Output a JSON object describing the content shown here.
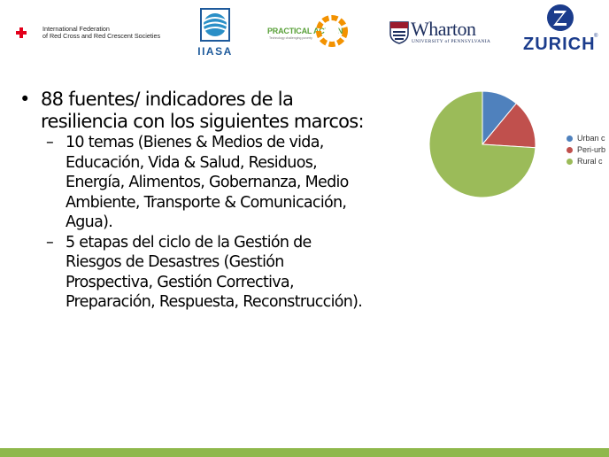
{
  "logos": {
    "ifrc": {
      "line1": "International Federation",
      "line2": "of Red Cross and Red Crescent Societies",
      "color": "#e3001b"
    },
    "iiasa": {
      "text": "IIASA",
      "color": "#1e5a9b"
    },
    "practical_action": {
      "text": "PRACTICAL ACTION",
      "tagline": "Technology challenging poverty",
      "green": "#5aa13a",
      "orange": "#f39200"
    },
    "wharton": {
      "text": "Wharton",
      "subtitle": "UNIVERSITY of PENNSYLVANIA",
      "color": "#1c2e5e"
    },
    "zurich": {
      "text": "ZURICH",
      "registered": "®",
      "color": "#1b3c8c"
    }
  },
  "content": {
    "bullet1": {
      "line1": "88 fuentes/ indicadores de la",
      "line2": "resiliencia con los siguientes marcos:"
    },
    "sub1": {
      "lines": [
        "10 temas (Bienes & Medios de vida,",
        "Educación, Vida & Salud, Residuos,",
        "Energía, Alimentos, Gobernanza, Medio",
        "Ambiente, Transporte & Comunicación,",
        "Agua)."
      ]
    },
    "sub2": {
      "lines": [
        "5 etapas del ciclo de la Gestión de",
        "Riesgos de Desastres (Gestión",
        "Prospectiva, Gestión Correctiva,",
        "Preparación, Respuesta, Reconstrucción)."
      ]
    }
  },
  "chart_data": {
    "type": "pie",
    "categories": [
      "Urban c",
      "Peri-urb",
      "Rural c"
    ],
    "values": [
      11,
      15,
      74
    ],
    "colors": [
      "#4f81bd",
      "#c0504d",
      "#9bbb59"
    ],
    "legend_position": "right"
  },
  "footer": {
    "bar_color": "#8fb84c"
  }
}
